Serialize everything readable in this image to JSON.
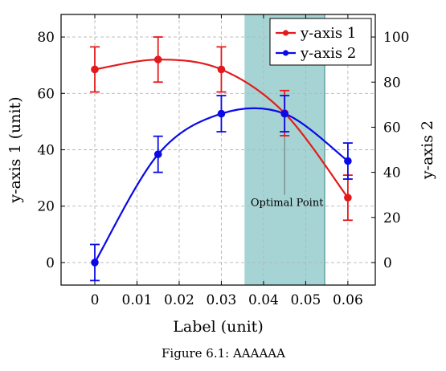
{
  "chart_data": {
    "type": "line",
    "xlabel": "Label (unit)",
    "ylabel": "y-axis 1 (unit)",
    "y2label": "y-axis 2",
    "caption": "Figure 6.1: AAAAAA",
    "xlim": [
      -0.008,
      0.0665
    ],
    "ylim": [
      -8,
      88
    ],
    "y2lim": [
      -10,
      110
    ],
    "xticks": [
      0,
      0.01,
      0.02,
      0.03,
      0.04,
      0.05,
      0.06
    ],
    "xtick_labels": [
      "0",
      "0.01",
      "0.02",
      "0.03",
      "0.04",
      "0.05",
      "0.06"
    ],
    "yticks": [
      0,
      20,
      40,
      60,
      80
    ],
    "ytick_labels": [
      "0",
      "20",
      "40",
      "60",
      "80"
    ],
    "y2ticks": [
      0,
      20,
      40,
      60,
      80,
      100
    ],
    "y2tick_labels": [
      "0",
      "20",
      "40",
      "60",
      "80",
      "100"
    ],
    "grid": true,
    "legend_position": "top-right",
    "shaded_region": {
      "x_start": 0.0355,
      "x_end": 0.0545,
      "color": "#a6d4d4",
      "edge_color": "#2f7f7f"
    },
    "annotation": {
      "text": "Optimal Point",
      "x": 0.045,
      "y_top": 52,
      "y_bottom": 24
    },
    "series": [
      {
        "name": "y-axis 1",
        "axis": "left",
        "color": "#e31a1c",
        "x": [
          0,
          0.015,
          0.03,
          0.045,
          0.06
        ],
        "y": [
          68.5,
          72,
          68.5,
          53,
          23
        ],
        "error": [
          8,
          8,
          8,
          8,
          8
        ]
      },
      {
        "name": "y-axis 2",
        "axis": "right",
        "color": "#0a0ae6",
        "x": [
          0,
          0.015,
          0.03,
          0.045,
          0.06
        ],
        "y": [
          0,
          48,
          66,
          66,
          45
        ],
        "error": [
          8,
          8,
          8,
          8,
          8
        ]
      }
    ]
  }
}
